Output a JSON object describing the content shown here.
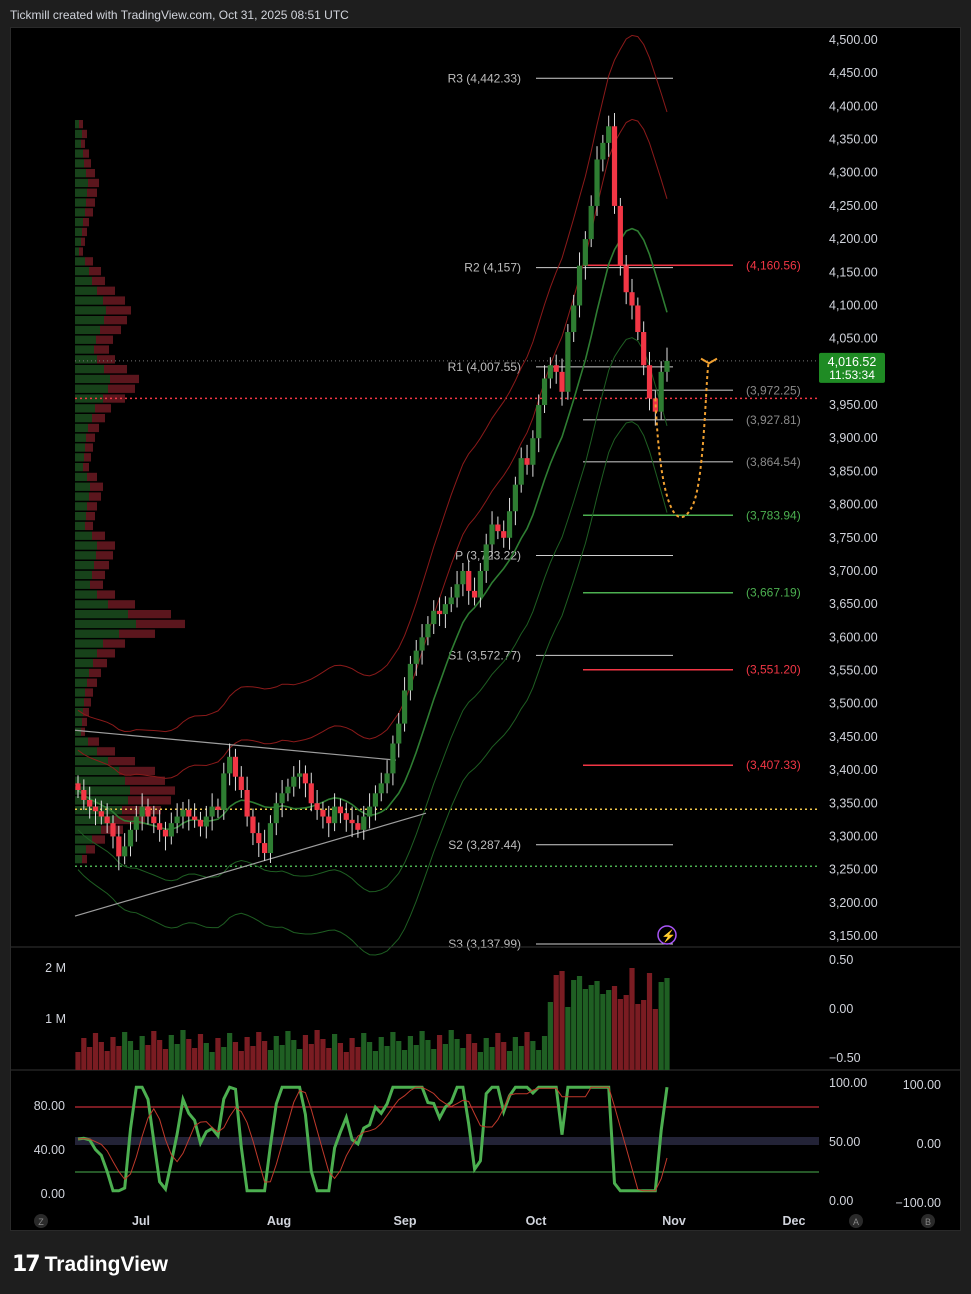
{
  "header": {
    "text": "Tickmill created with TradingView.com, Oct 31, 2025 08:51 UTC"
  },
  "footer": {
    "logo_text": "TradingView",
    "logo_mark": "17"
  },
  "colors": {
    "up": "#2e7d32",
    "down": "#f23645",
    "price_badge": "#1f8b24",
    "dotted_red": "#f23645",
    "dotted_yellow": "#f2c94c",
    "pivot": "#bdbdbd"
  },
  "chart_data": [
    {
      "type": "candlestick",
      "title": "",
      "y_ticks": [
        "4,500.00",
        "4,450.00",
        "4,400.00",
        "4,350.00",
        "4,300.00",
        "4,250.00",
        "4,200.00",
        "4,150.00",
        "4,100.00",
        "4,050.00",
        "3,950.00",
        "3,900.00",
        "3,850.00",
        "3,800.00",
        "3,750.00",
        "3,700.00",
        "3,650.00",
        "3,600.00",
        "3,550.00",
        "3,500.00",
        "3,450.00",
        "3,400.00",
        "3,350.00",
        "3,300.00",
        "3,250.00",
        "3,200.00",
        "3,150.00"
      ],
      "ylim": [
        3130,
        4520
      ],
      "x_ticks": [
        "Jul",
        "Aug",
        "Sep",
        "Oct",
        "Nov",
        "Dec"
      ],
      "last_price": {
        "value": "4,016.52",
        "countdown": "11:53:34"
      },
      "pivot_levels": [
        {
          "label": "R3 (4,442.33)",
          "value": 4442.33
        },
        {
          "label": "R2 (4,157)",
          "value": 4157
        },
        {
          "label": "R1 (4,007.55)",
          "value": 4007.55
        },
        {
          "label": "P (3,723.22)",
          "value": 3723.22
        },
        {
          "label": "S1 (3,572.77)",
          "value": 3572.77
        },
        {
          "label": "S2 (3,287.44)",
          "value": 3287.44
        },
        {
          "label": "S3 (3,137.99)",
          "value": 3137.99
        }
      ],
      "right_levels": [
        {
          "label": "(4,160.56)",
          "value": 4160.56,
          "color": "#f23645"
        },
        {
          "label": "(3,972.25)",
          "value": 3972.25,
          "color": "#8a8a8a"
        },
        {
          "label": "(3,927.81)",
          "value": 3927.81,
          "color": "#8a8a8a"
        },
        {
          "label": "(3,864.54)",
          "value": 3864.54,
          "color": "#8a8a8a"
        },
        {
          "label": "(3,783.94)",
          "value": 3783.94,
          "color": "#4caf50"
        },
        {
          "label": "(3,667.19)",
          "value": 3667.19,
          "color": "#4caf50"
        },
        {
          "label": "(3,551.20)",
          "value": 3551.2,
          "color": "#f23645"
        },
        {
          "label": "(3,407.33)",
          "value": 3407.33,
          "color": "#f23645"
        }
      ],
      "dotted_lines": [
        {
          "value": 3960,
          "color": "#f23645"
        },
        {
          "value": 3341,
          "color": "#f2c94c"
        },
        {
          "value": 3255,
          "color": "#4caf50"
        }
      ],
      "closes": [
        3370,
        3355,
        3345,
        3338,
        3330,
        3320,
        3300,
        3270,
        3285,
        3310,
        3330,
        3345,
        3330,
        3320,
        3310,
        3300,
        3320,
        3330,
        3340,
        3330,
        3325,
        3315,
        3330,
        3345,
        3340,
        3395,
        3420,
        3390,
        3370,
        3330,
        3305,
        3290,
        3275,
        3320,
        3350,
        3365,
        3375,
        3390,
        3395,
        3380,
        3350,
        3340,
        3330,
        3320,
        3345,
        3335,
        3325,
        3320,
        3310,
        3330,
        3345,
        3365,
        3380,
        3395,
        3440,
        3470,
        3520,
        3560,
        3580,
        3600,
        3620,
        3640,
        3635,
        3650,
        3660,
        3680,
        3700,
        3670,
        3660,
        3700,
        3740,
        3770,
        3760,
        3750,
        3790,
        3830,
        3870,
        3860,
        3900,
        3950,
        3990,
        4010,
        4000,
        3970,
        4060,
        4100,
        4160,
        4200,
        4250,
        4320,
        4345,
        4370,
        4250,
        4160,
        4120,
        4100,
        4060,
        4010,
        3960,
        3940,
        4000,
        4016.52
      ],
      "volume": {
        "y_ticks": [
          "2 M",
          "1 M"
        ],
        "right_ticks": [
          "0.50",
          "0.00",
          "−0.50"
        ]
      },
      "oscillator": {
        "y_ticks": [
          "80.00",
          "40.00",
          "0.00"
        ],
        "right_ticks": [
          "100.00",
          "50.00",
          "0.00"
        ],
        "right_ticks2": [
          "100.00",
          "0.00",
          "−100.00"
        ]
      }
    }
  ],
  "bottom_badges": [
    "Z",
    "A",
    "B"
  ]
}
